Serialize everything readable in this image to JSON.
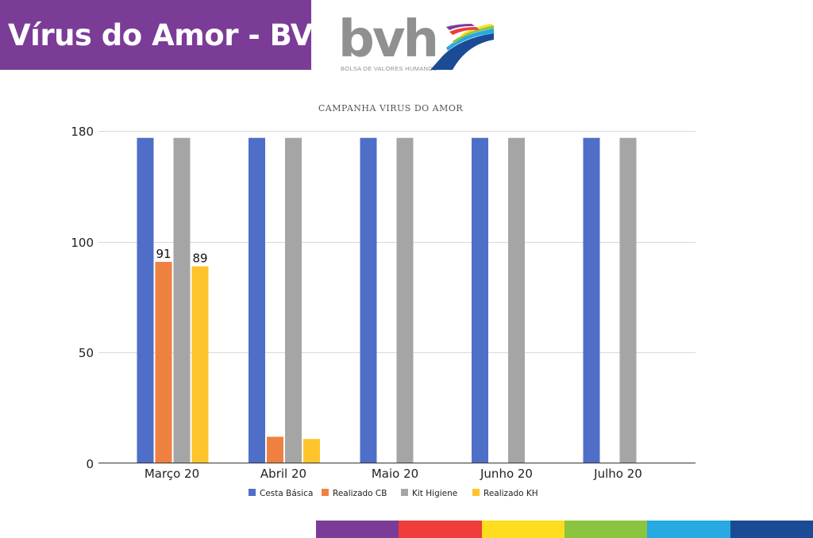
{
  "header": {
    "title": "Vírus do Amor - BVH",
    "logo_text": "bvh",
    "logo_tagline": "BOLSA DE VALORES HUMANOS"
  },
  "colors": {
    "banner": "#7b3c97",
    "stripe": [
      "#7b3c97",
      "#ee3d3a",
      "#fddd1e",
      "#8bc43f",
      "#27a9e1",
      "#1c4b96"
    ]
  },
  "chart_data": {
    "type": "bar",
    "title": "CAMPANHA VIRUS DO AMOR",
    "categories": [
      "Março 20",
      "Abril 20",
      "Maio 20",
      "Junho 20",
      "Julho 20"
    ],
    "series": [
      {
        "name": "Cesta Básica",
        "color": "#4f6ec7",
        "values": [
          175,
          175,
          175,
          175,
          175
        ]
      },
      {
        "name": "Realizado CB",
        "color": "#ee8140",
        "values": [
          91,
          12,
          0,
          0,
          0
        ]
      },
      {
        "name": "Kit Higiene",
        "color": "#a5a5a5",
        "values": [
          175,
          175,
          175,
          175,
          175
        ]
      },
      {
        "name": "Realizado KH",
        "color": "#fdc42c",
        "values": [
          89,
          11,
          0,
          0,
          0
        ]
      }
    ],
    "data_labels": [
      {
        "series": 1,
        "category": 0,
        "text": "91"
      },
      {
        "series": 3,
        "category": 0,
        "text": "89"
      }
    ],
    "yticks": [
      {
        "value": 0,
        "label": "0"
      },
      {
        "value": 50,
        "label": "50"
      },
      {
        "value": 100,
        "label": "100"
      },
      {
        "value": 180,
        "label": "180"
      }
    ],
    "grid": true,
    "legend": "bottom"
  }
}
